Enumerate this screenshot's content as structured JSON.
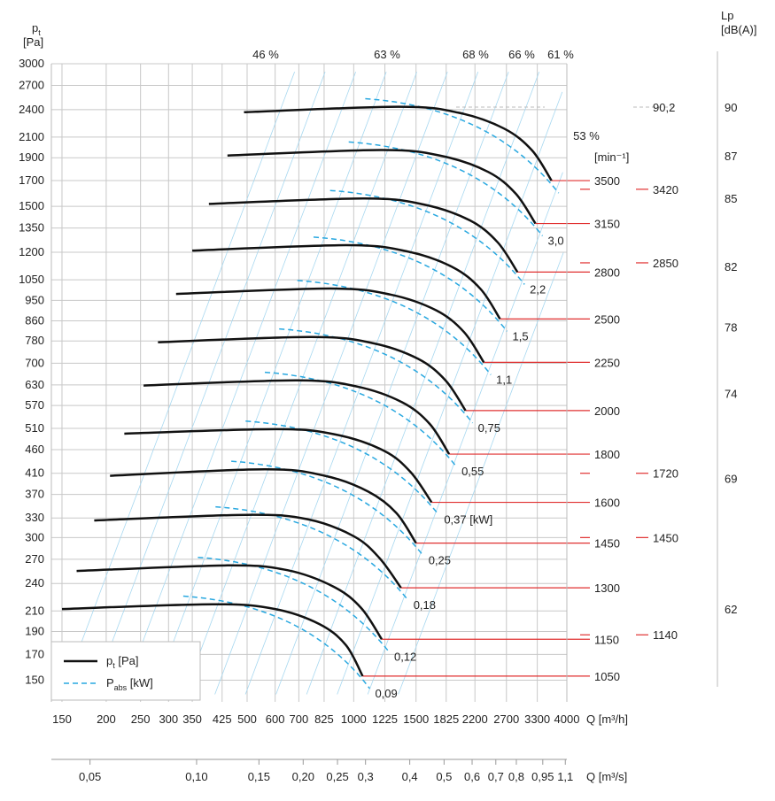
{
  "chart_data": {
    "type": "line",
    "title": "",
    "y_axis": {
      "label_main": "p",
      "label_sub": "t",
      "unit": "[Pa]",
      "scale": "log",
      "ticks": [
        150,
        170,
        190,
        210,
        240,
        270,
        300,
        330,
        370,
        410,
        460,
        510,
        570,
        630,
        700,
        780,
        860,
        950,
        1050,
        1200,
        1350,
        1500,
        1700,
        1900,
        2100,
        2400,
        2700,
        3000
      ],
      "tick_labels": [
        "150",
        "170",
        "190",
        "210",
        "240",
        "270",
        "300",
        "330",
        "370",
        "410",
        "460",
        "510",
        "570",
        "630",
        "700",
        "780",
        "860",
        "950",
        "1050",
        "1200",
        "1350",
        "1500",
        "1700",
        "1900",
        "2100",
        "2400",
        "2700",
        "3000"
      ]
    },
    "x_axis_m3h": {
      "unit": "Q [m³/h]",
      "scale": "log",
      "ticks": [
        150,
        200,
        250,
        300,
        350,
        425,
        500,
        600,
        700,
        825,
        1000,
        1225,
        1500,
        1825,
        2200,
        2700,
        3300,
        4000
      ],
      "tick_labels": [
        "150",
        "200",
        "250",
        "300",
        "350",
        "425",
        "500",
        "600",
        "700",
        "825",
        "1000",
        "1225",
        "1500",
        "1825",
        "2200",
        "2700",
        "3300",
        "4000"
      ]
    },
    "x_axis_m3s": {
      "unit": "Q [m³/s]",
      "ticks": [
        0.05,
        0.1,
        0.15,
        0.2,
        0.25,
        0.3,
        0.4,
        0.5,
        0.6,
        0.7,
        0.8,
        0.95,
        1.1
      ],
      "tick_labels": [
        "0,05",
        "0,10",
        "0,15",
        "0,20",
        "0,25",
        "0,3",
        "0,4",
        "0,5",
        "0,6",
        "0,7",
        "0,8",
        "0,95",
        "1,1"
      ]
    },
    "right_axis": {
      "title": "Lp",
      "unit": "[dB(A)]",
      "ticks": [
        "90",
        "87",
        "85",
        "82",
        "78",
        "74",
        "69",
        "62"
      ],
      "tick_pt": [
        2430,
        1920,
        1560,
        1120,
        835,
        605,
        400,
        212
      ]
    },
    "efficiency_labels": [
      "46 %",
      "63 %",
      "68 %",
      "66 %",
      "61 %",
      "53 %"
    ],
    "speed_unit": "[min⁻¹]",
    "series": [
      {
        "name": "1050",
        "power": "0,09",
        "q": [
          150,
          400,
          600,
          800,
          950,
          1060
        ],
        "pt": [
          212,
          217,
          212,
          197,
          178,
          153
        ]
      },
      {
        "name": "1150",
        "power": "0,12",
        "q": [
          165,
          440,
          650,
          880,
          1050,
          1200
        ],
        "pt": [
          255,
          262,
          256,
          236,
          213,
          183
        ]
      },
      {
        "name": "1300",
        "power": "0,18",
        "q": [
          185,
          500,
          740,
          1000,
          1180,
          1360
        ],
        "pt": [
          326,
          335,
          328,
          302,
          272,
          235
        ]
      },
      {
        "name": "1450",
        "power": "0,25",
        "q": [
          205,
          560,
          830,
          1100,
          1320,
          1500
        ],
        "pt": [
          405,
          418,
          405,
          375,
          338,
          292
        ]
      },
      {
        "name": "1600",
        "power": "0,37 [kW]",
        "q": [
          225,
          610,
          900,
          1220,
          1450,
          1660
        ],
        "pt": [
          497,
          508,
          494,
          457,
          412,
          356
        ]
      },
      {
        "name": "1800",
        "power": "0,55",
        "q": [
          255,
          690,
          1020,
          1370,
          1640,
          1860
        ],
        "pt": [
          628,
          644,
          625,
          579,
          521,
          450
        ]
      },
      {
        "name": "2000",
        "power": "0,75",
        "q": [
          280,
          760,
          1130,
          1520,
          1820,
          2070
        ],
        "pt": [
          775,
          795,
          772,
          715,
          643,
          556
        ]
      },
      {
        "name": "2250",
        "power": "1,1",
        "q": [
          315,
          860,
          1270,
          1710,
          2050,
          2330
        ],
        "pt": [
          980,
          1006,
          977,
          905,
          814,
          703
        ]
      },
      {
        "name": "2500",
        "power": "1,5",
        "q": [
          350,
          955,
          1410,
          1900,
          2280,
          2590
        ],
        "pt": [
          1210,
          1242,
          1206,
          1117,
          1005,
          868
        ]
      },
      {
        "name": "2800",
        "power": "2,2",
        "q": [
          390,
          1070,
          1580,
          2130,
          2550,
          2900
        ],
        "pt": [
          1518,
          1558,
          1513,
          1401,
          1260,
          1090
        ]
      },
      {
        "name": "3150",
        "power": "3,0",
        "q": [
          440,
          1200,
          1780,
          2400,
          2870,
          3260
        ],
        "pt": [
          1920,
          1972,
          1915,
          1773,
          1595,
          1380
        ]
      },
      {
        "name": "3500",
        "power": "",
        "q": [
          490,
          1340,
          1980,
          2660,
          3190,
          3620
        ],
        "pt": [
          2370,
          2434,
          2364,
          2189,
          1969,
          1700
        ]
      }
    ],
    "noise_markers": [
      {
        "label": "90,2",
        "pt": 2430
      },
      {
        "label": "3420",
        "pt": 1630
      },
      {
        "label": "2850",
        "pt": 1140
      },
      {
        "label": "1720",
        "pt": 410
      },
      {
        "label": "1450",
        "pt": 300
      },
      {
        "label": "1140",
        "pt": 187
      }
    ],
    "legend": [
      {
        "symbol": "p",
        "sub": "t",
        "suffix": " [Pa]"
      },
      {
        "symbol": "P",
        "sub": "abs",
        "suffix": " [kW]"
      }
    ],
    "grid": true,
    "legend_position": "bottom-left"
  }
}
